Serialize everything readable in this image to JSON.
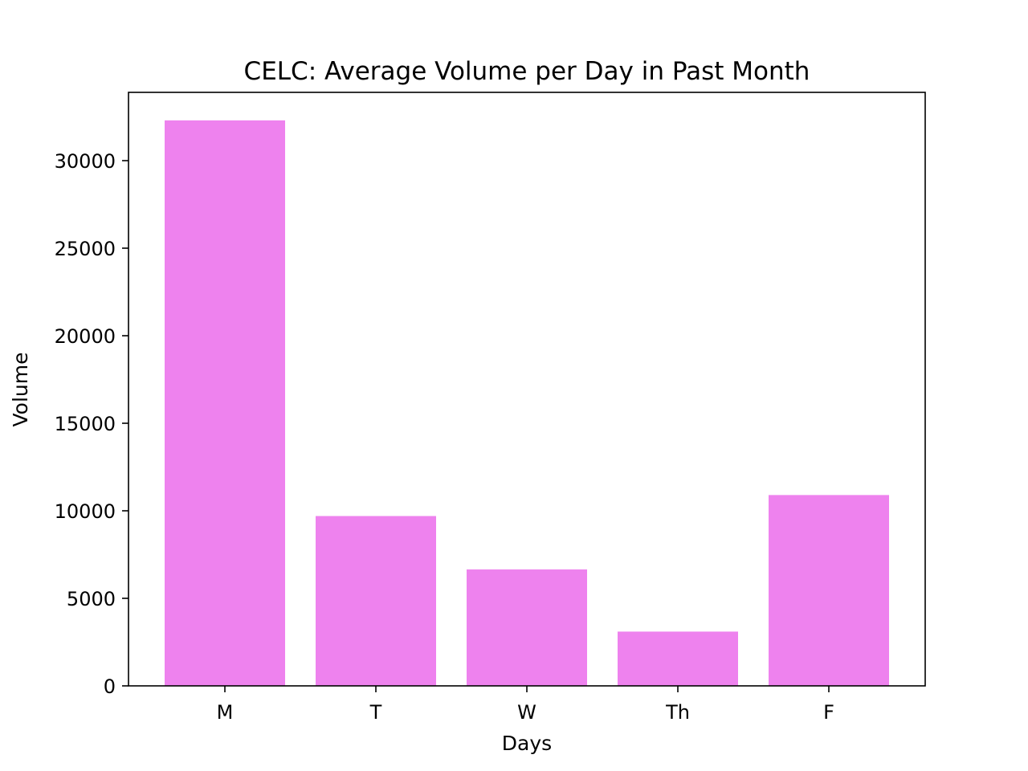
{
  "chart_data": {
    "type": "bar",
    "title": "CELC: Average Volume per Day in Past Month",
    "xlabel": "Days",
    "ylabel": "Volume",
    "categories": [
      "M",
      "T",
      "W",
      "Th",
      "F"
    ],
    "values": [
      32300,
      9700,
      6650,
      3100,
      10900
    ],
    "ylim": [
      0,
      33900
    ],
    "yticks": [
      0,
      5000,
      10000,
      15000,
      20000,
      25000,
      30000
    ],
    "bar_color": "#ee82ee",
    "grid": false,
    "legend": "none"
  }
}
